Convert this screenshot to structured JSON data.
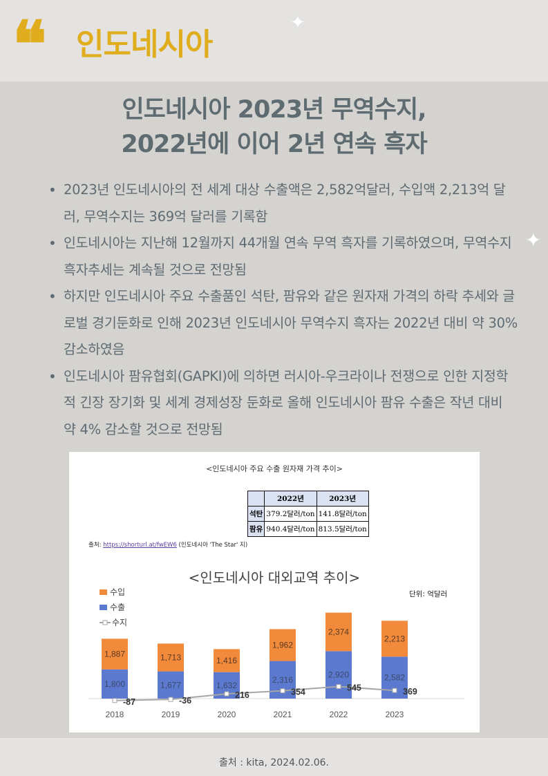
{
  "header": {
    "title": "인도네시아"
  },
  "main_title": {
    "line1": "인도네시아 2023년 무역수지,",
    "line2": "2022년에 이어 2년 연속 흑자"
  },
  "bullets": [
    "2023년 인도네시아의 전 세계 대상 수출액은 2,582억달러, 수입액 2,213억 달러, 무역수지는 369억 달러를 기록함",
    "인도네시아는 지난해 12월까지 44개월 연속 무역 흑자를 기록하였으며, 무역수지 흑자추세는 계속될 것으로 전망됨",
    "하지만 인도네시아 주요 수출품인 석탄, 팜유와 같은 원자재 가격의 하락 추세와 글로벌 경기둔화로 인해 2023년 인도네시아 무역수지 흑자는 2022년 대비 약 30% 감소하였음",
    "인도네시아 팜유협회(GAPKI)에 의하면 러시아-우크라이나 전쟁으로 인한 지정학적 긴장 장기화 및 세계 경제성장 둔화로 올해 인도네시아 팜유 수출은 작년 대비 약 4% 감소할 것으로 전망됨"
  ],
  "price_figure": {
    "caption": "<인도네시아 주요 수출 원자재 가격 추이>",
    "columns": [
      "2022년",
      "2023년"
    ],
    "rows": [
      {
        "label": "석탄",
        "values": [
          "379.2달러/ton",
          "141.8달러/ton"
        ]
      },
      {
        "label": "팜유",
        "values": [
          "940.4달러/ton",
          "813.5달러/ton"
        ]
      }
    ],
    "source_prefix": "출처: ",
    "source_link": "https://shorturl.at/fwEW6",
    "source_suffix": " (인도네시아 'The Star' 지)"
  },
  "chart_data": {
    "type": "bar",
    "title": "<인도네시아 대외교역 추이>",
    "unit": "단위: 억달러",
    "categories": [
      "2018",
      "2019",
      "2020",
      "2021",
      "2022",
      "2023"
    ],
    "series": [
      {
        "name": "수입",
        "values": [
          1887,
          1713,
          1416,
          1962,
          2374,
          2213
        ],
        "color": "#f28a3c",
        "labels": [
          "1,887",
          "1,713",
          "1,416",
          "1,962",
          "2,374",
          "2,213"
        ]
      },
      {
        "name": "수출",
        "values": [
          1800,
          1677,
          1632,
          2316,
          2920,
          2582
        ],
        "color": "#5b79cf",
        "labels": [
          "1,800",
          "1,677",
          "1,632",
          "2,316",
          "2,920",
          "2,582"
        ]
      },
      {
        "name": "수지",
        "values": [
          -87,
          -36,
          216,
          354,
          545,
          369
        ],
        "color": "#a6a6a6",
        "labels": [
          "-87",
          "-36",
          "216",
          "354",
          "545",
          "369"
        ]
      }
    ],
    "stacked": true,
    "legend_position": "top-left",
    "grid": false
  },
  "footer": {
    "source": "출처 : kita, 2024.02.06."
  }
}
